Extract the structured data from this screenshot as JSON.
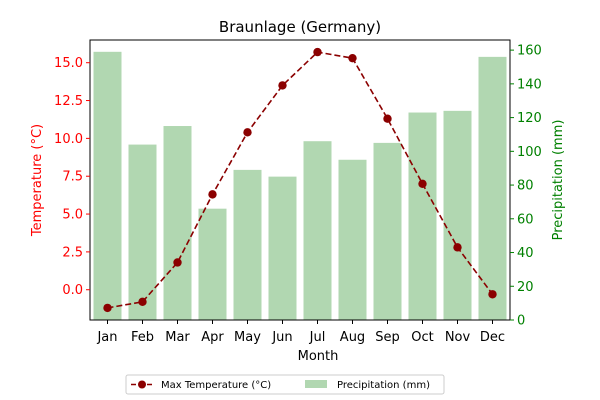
{
  "chart_data": {
    "type": "bar+line",
    "title": "Braunlage (Germany)",
    "xlabel": "Month",
    "categories": [
      "Jan",
      "Feb",
      "Mar",
      "Apr",
      "May",
      "Jun",
      "Jul",
      "Aug",
      "Sep",
      "Oct",
      "Nov",
      "Dec"
    ],
    "left_axis": {
      "label": "Temperature (°C)",
      "color": "#ff0000",
      "ylim": [
        -2.0,
        16.5
      ],
      "ticks": [
        0.0,
        2.5,
        5.0,
        7.5,
        10.0,
        12.5,
        15.0
      ],
      "tick_labels": [
        "0.0",
        "2.5",
        "5.0",
        "7.5",
        "10.0",
        "12.5",
        "15.0"
      ]
    },
    "right_axis": {
      "label": "Precipitation (mm)",
      "color": "#008000",
      "ylim": [
        0,
        166
      ],
      "ticks": [
        0,
        20,
        40,
        60,
        80,
        100,
        120,
        140,
        160
      ],
      "tick_labels": [
        "0",
        "20",
        "40",
        "60",
        "80",
        "100",
        "120",
        "140",
        "160"
      ]
    },
    "series": [
      {
        "name": "Max Temperature (°C)",
        "kind": "line",
        "axis": "left",
        "color": "#8b0000",
        "linestyle": "dashed",
        "marker": "circle",
        "values": [
          -1.2,
          -0.8,
          1.8,
          6.3,
          10.4,
          13.5,
          15.7,
          15.3,
          11.3,
          7.0,
          2.8,
          -0.3
        ]
      },
      {
        "name": "Precipitation (mm)",
        "kind": "bar",
        "axis": "right",
        "color": "#b1d7b1",
        "values": [
          159,
          104,
          115,
          66,
          89,
          85,
          106,
          95,
          105,
          123,
          124,
          156
        ]
      }
    ],
    "legend": {
      "placement": "bottom-center",
      "columns": 2
    },
    "grid": false
  }
}
